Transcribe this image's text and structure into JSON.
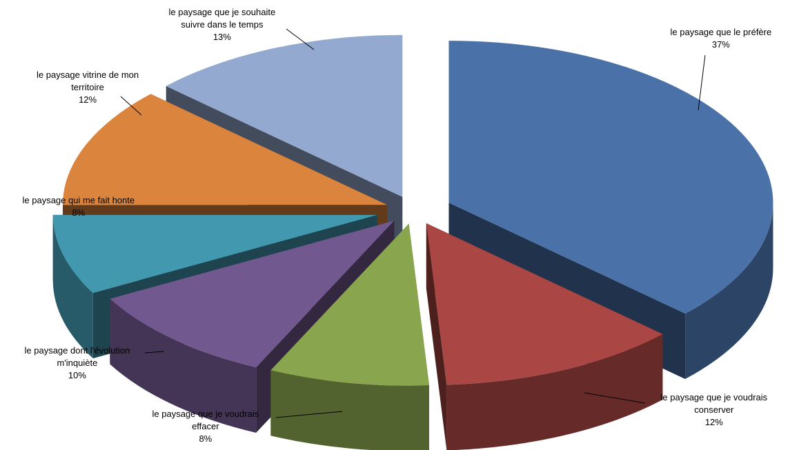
{
  "chart_data": {
    "type": "pie",
    "style": "3d-exploded",
    "categories": [
      "le paysage  que le préfère",
      "le paysage  que je voudrais conserver",
      "le paysage  que je voudrais effacer",
      "le paysage  dont l'évolution m'inquiète",
      "le paysage  qui me fait honte",
      "le paysage  vitrine de mon territoire",
      "le paysage  que je souhaite suivre dans le temps"
    ],
    "values": [
      37,
      12,
      8,
      10,
      8,
      12,
      13
    ],
    "value_labels": [
      "37%",
      "12%",
      "8%",
      "10%",
      "8%",
      "12%",
      "13%"
    ],
    "colors": [
      "#4a72a8",
      "#aa4643",
      "#89a54e",
      "#71588f",
      "#4198af",
      "#db843d",
      "#93a9cf"
    ],
    "labels": [
      {
        "lines": [
          "le paysage  que le préfère"
        ],
        "pct": "37%"
      },
      {
        "lines": [
          "le paysage  que je voudrais",
          "conserver"
        ],
        "pct": "12%"
      },
      {
        "lines": [
          "le paysage  que je voudrais",
          "effacer"
        ],
        "pct": "8%"
      },
      {
        "lines": [
          "le paysage  dont l'évolution",
          "m'inquiète"
        ],
        "pct": "10%"
      },
      {
        "lines": [
          "le paysage  qui me fait honte"
        ],
        "pct": "8%"
      },
      {
        "lines": [
          "le paysage  vitrine de mon",
          "territoire"
        ],
        "pct": "12%"
      },
      {
        "lines": [
          "le paysage  que je souhaite",
          "suivre dans le temps"
        ],
        "pct": "13%"
      }
    ],
    "legend": "none"
  }
}
